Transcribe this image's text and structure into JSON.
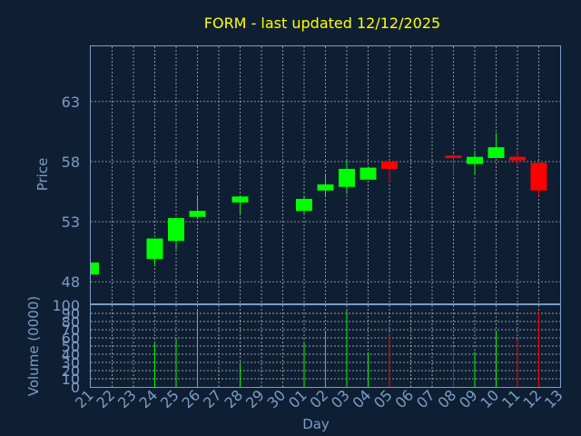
{
  "chart_data": {
    "type": "candlestick",
    "title": "FORM - last updated 12/12/2025",
    "xlabel": "Day",
    "price_panel": {
      "ylabel": "Price",
      "yticks": [
        48,
        53,
        58,
        63
      ],
      "ylim": [
        46.2,
        67.6
      ]
    },
    "volume_panel": {
      "ylabel": "Volume (0000)",
      "yticks": [
        0,
        10,
        20,
        30,
        40,
        50,
        60,
        70,
        80,
        90,
        100
      ],
      "ylim": [
        0,
        100
      ]
    },
    "x_ticks": [
      "21",
      "22",
      "23",
      "24",
      "25",
      "26",
      "27",
      "28",
      "29",
      "30",
      "01",
      "02",
      "03",
      "04",
      "05",
      "06",
      "07",
      "08",
      "09",
      "10",
      "11",
      "12",
      "13"
    ],
    "candles": [
      {
        "day": "21",
        "open": 48.6,
        "close": 49.6,
        "high": 49.6,
        "low": 48.6,
        "volume": 0
      },
      {
        "day": "24",
        "open": 49.9,
        "close": 51.6,
        "high": 51.6,
        "low": 49.3,
        "volume": 54
      },
      {
        "day": "25",
        "open": 51.4,
        "close": 53.3,
        "high": 53.4,
        "low": 50.7,
        "volume": 58
      },
      {
        "day": "26",
        "open": 53.4,
        "close": 53.9,
        "high": 55.2,
        "low": 53.2,
        "volume": 93
      },
      {
        "day": "28",
        "open": 54.6,
        "close": 55.1,
        "high": 55.2,
        "low": 53.7,
        "volume": 27
      },
      {
        "day": "01",
        "open": 53.9,
        "close": 54.9,
        "high": 55.2,
        "low": 53.7,
        "volume": 55
      },
      {
        "day": "02",
        "open": 55.6,
        "close": 56.1,
        "high": 56.9,
        "low": 55.2,
        "volume": 68
      },
      {
        "day": "03",
        "open": 55.9,
        "close": 57.4,
        "high": 58.1,
        "low": 55.3,
        "volume": 93
      },
      {
        "day": "04",
        "open": 56.5,
        "close": 57.5,
        "high": 57.5,
        "low": 56.5,
        "volume": 42
      },
      {
        "day": "05",
        "open": 58.0,
        "close": 57.4,
        "high": 58.1,
        "low": 56.3,
        "volume": 63
      },
      {
        "day": "08",
        "open": 58.5,
        "close": 58.3,
        "high": 58.6,
        "low": 56.9,
        "volume": 48
      },
      {
        "day": "09",
        "open": 57.8,
        "close": 58.4,
        "high": 58.9,
        "low": 56.9,
        "volume": 43
      },
      {
        "day": "10",
        "open": 58.3,
        "close": 59.2,
        "high": 60.4,
        "low": 58.3,
        "volume": 69
      },
      {
        "day": "11",
        "open": 58.4,
        "close": 58.1,
        "high": 58.9,
        "low": 57.7,
        "volume": 58
      },
      {
        "day": "12",
        "open": 57.9,
        "close": 55.6,
        "high": 57.9,
        "low": 55.1,
        "volume": 92
      }
    ],
    "colors": {
      "up": "#00ff00",
      "down": "#ff0000",
      "background": "#0f1f33",
      "axis": "#7b9cc7",
      "title": "#ffff00"
    },
    "grid": true
  }
}
